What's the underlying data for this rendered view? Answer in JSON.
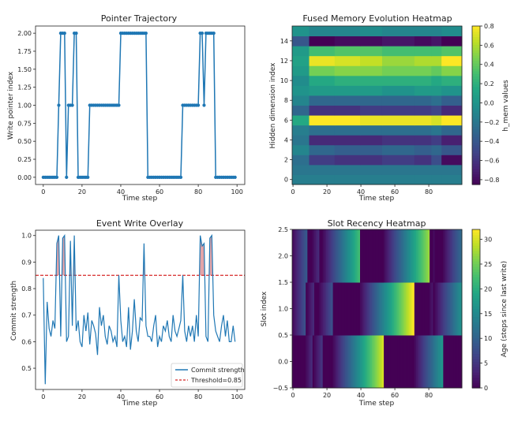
{
  "chart_data": [
    {
      "type": "line",
      "title": "Pointer Trajectory",
      "xlabel": "Time step",
      "ylabel": "Write pointer index",
      "xlim": [
        -4,
        104
      ],
      "ylim": [
        -0.1,
        2.1
      ],
      "xticks": [
        0,
        20,
        40,
        60,
        80,
        100
      ],
      "yticks": [
        0.0,
        0.25,
        0.5,
        0.75,
        1.0,
        1.25,
        1.5,
        1.75,
        2.0
      ],
      "ytick_labels": [
        "0.00",
        "0.25",
        "0.50",
        "0.75",
        "1.00",
        "1.25",
        "1.50",
        "1.75",
        "2.00"
      ],
      "color": "#1f77b4",
      "markers": true,
      "x": [
        0,
        1,
        2,
        3,
        4,
        5,
        6,
        7,
        8,
        9,
        10,
        11,
        12,
        13,
        14,
        15,
        16,
        17,
        18,
        19,
        20,
        21,
        22,
        23,
        24,
        25,
        26,
        27,
        28,
        29,
        30,
        31,
        32,
        33,
        34,
        35,
        36,
        37,
        38,
        39,
        40,
        41,
        42,
        43,
        44,
        45,
        46,
        47,
        48,
        49,
        50,
        51,
        52,
        53,
        54,
        55,
        56,
        57,
        58,
        59,
        60,
        61,
        62,
        63,
        64,
        65,
        66,
        67,
        68,
        69,
        70,
        71,
        72,
        73,
        74,
        75,
        76,
        77,
        78,
        79,
        80,
        81,
        82,
        83,
        84,
        85,
        86,
        87,
        88,
        89,
        90,
        91,
        92,
        93,
        94,
        95,
        96,
        97,
        98,
        99
      ],
      "values": [
        0,
        0,
        0,
        0,
        0,
        0,
        0,
        0,
        1,
        2,
        2,
        2,
        0,
        1,
        1,
        1,
        2,
        2,
        0,
        0,
        0,
        0,
        0,
        0,
        1,
        1,
        1,
        1,
        1,
        1,
        1,
        1,
        1,
        1,
        1,
        1,
        1,
        1,
        1,
        1,
        2,
        2,
        2,
        2,
        2,
        2,
        2,
        2,
        2,
        2,
        2,
        2,
        2,
        2,
        0,
        0,
        0,
        0,
        0,
        0,
        0,
        0,
        0,
        0,
        0,
        0,
        0,
        0,
        0,
        0,
        0,
        0,
        1,
        1,
        1,
        1,
        1,
        1,
        1,
        1,
        1,
        2,
        2,
        1,
        2,
        2,
        2,
        2,
        2,
        0,
        0,
        0,
        0,
        0,
        0,
        0,
        0,
        0,
        0,
        0
      ]
    },
    {
      "type": "heatmap",
      "title": "Fused Memory Evolution Heatmap",
      "xlabel": "Time step",
      "ylabel": "Hidden dimension index",
      "xticks": [
        0,
        20,
        40,
        60,
        80
      ],
      "yticks": [
        0,
        2,
        4,
        6,
        8,
        10,
        12,
        14
      ],
      "n_rows": 16,
      "n_cols": 100,
      "colormap": "viridis",
      "colorbar_label": "h_mem values",
      "vmin": -0.85,
      "vmax": 0.8,
      "colorbar_ticks": [
        -0.8,
        -0.6,
        -0.4,
        -0.2,
        0.0,
        0.2,
        0.4,
        0.6,
        0.8
      ],
      "colorbar_tick_labels": [
        "−0.8",
        "−0.6",
        "−0.4",
        "−0.2",
        "0.0",
        "0.2",
        "0.4",
        "0.6",
        "0.8"
      ],
      "segment_boundaries": [
        0,
        10,
        25,
        40,
        53,
        72,
        82,
        88,
        100
      ],
      "rows": [
        [
          -0.15,
          -0.15,
          -0.15,
          -0.15,
          -0.15,
          -0.15,
          -0.15,
          -0.15
        ],
        [
          -0.2,
          -0.2,
          -0.2,
          -0.2,
          -0.2,
          -0.2,
          -0.2,
          -0.2
        ],
        [
          -0.25,
          -0.55,
          -0.6,
          -0.6,
          -0.55,
          -0.6,
          -0.45,
          -0.8
        ],
        [
          -0.1,
          -0.3,
          -0.35,
          -0.35,
          -0.3,
          -0.35,
          -0.3,
          -0.4
        ],
        [
          -0.2,
          -0.65,
          -0.65,
          -0.65,
          -0.6,
          -0.6,
          -0.55,
          -0.7
        ],
        [
          -0.15,
          -0.25,
          -0.25,
          -0.25,
          -0.25,
          -0.25,
          -0.2,
          -0.3
        ],
        [
          0.15,
          0.8,
          0.8,
          0.75,
          0.75,
          0.75,
          0.7,
          0.8
        ],
        [
          -0.3,
          -0.6,
          -0.6,
          -0.55,
          -0.55,
          -0.55,
          -0.5,
          -0.65
        ],
        [
          -0.1,
          -0.3,
          -0.3,
          -0.3,
          -0.3,
          -0.3,
          -0.25,
          -0.35
        ],
        [
          0.0,
          0.05,
          0.05,
          0.05,
          0.0,
          0.05,
          0.05,
          0.0
        ],
        [
          -0.05,
          0.15,
          0.2,
          0.2,
          0.2,
          0.2,
          0.15,
          0.2
        ],
        [
          0.05,
          0.45,
          0.5,
          0.5,
          0.45,
          0.45,
          0.4,
          0.5
        ],
        [
          0.1,
          0.75,
          0.7,
          0.65,
          0.55,
          0.6,
          0.6,
          0.8
        ],
        [
          0.05,
          0.3,
          0.35,
          0.35,
          0.3,
          0.3,
          0.3,
          0.35
        ],
        [
          -0.4,
          -0.85,
          -0.8,
          -0.8,
          -0.75,
          -0.8,
          -0.75,
          -0.85
        ],
        [
          0.0,
          -0.1,
          -0.1,
          -0.05,
          -0.1,
          -0.1,
          -0.1,
          -0.05
        ]
      ]
    },
    {
      "type": "line",
      "title": "Event Write Overlay",
      "xlabel": "Time step",
      "ylabel": "Commit strength",
      "xlim": [
        -4,
        104
      ],
      "ylim": [
        0.42,
        1.02
      ],
      "xticks": [
        0,
        20,
        40,
        60,
        80,
        100
      ],
      "yticks": [
        0.5,
        0.6,
        0.7,
        0.8,
        0.9,
        1.0
      ],
      "ytick_labels": [
        "0.5",
        "0.6",
        "0.7",
        "0.8",
        "0.9",
        "1.0"
      ],
      "threshold": 0.85,
      "threshold_color": "#d62728",
      "fill_color": "#d9848a",
      "legend_position": "lower right",
      "legend": [
        "Commit strength",
        "Threshold=0.85"
      ],
      "series": [
        {
          "name": "Commit strength",
          "color": "#1f77b4",
          "x": [
            0,
            1,
            2,
            3,
            4,
            5,
            6,
            7,
            8,
            9,
            10,
            11,
            12,
            13,
            14,
            15,
            16,
            17,
            18,
            19,
            20,
            21,
            22,
            23,
            24,
            25,
            26,
            27,
            28,
            29,
            30,
            31,
            32,
            33,
            34,
            35,
            36,
            37,
            38,
            39,
            40,
            41,
            42,
            43,
            44,
            45,
            46,
            47,
            48,
            49,
            50,
            51,
            52,
            53,
            54,
            55,
            56,
            57,
            58,
            59,
            60,
            61,
            62,
            63,
            64,
            65,
            66,
            67,
            68,
            69,
            70,
            71,
            72,
            73,
            74,
            75,
            76,
            77,
            78,
            79,
            80,
            81,
            82,
            83,
            84,
            85,
            86,
            87,
            88,
            89,
            90,
            91,
            92,
            93,
            94,
            95,
            96,
            97,
            98,
            99
          ],
          "values": [
            0.84,
            0.44,
            0.75,
            0.65,
            0.62,
            0.68,
            0.65,
            0.97,
            1.0,
            0.62,
            0.99,
            1.0,
            0.6,
            0.62,
            0.98,
            0.66,
            1.0,
            0.64,
            0.68,
            0.6,
            0.58,
            0.7,
            0.64,
            0.71,
            0.59,
            0.68,
            0.66,
            0.63,
            0.55,
            0.73,
            0.66,
            0.7,
            0.62,
            0.59,
            0.66,
            0.64,
            0.6,
            0.62,
            0.58,
            0.85,
            0.68,
            0.6,
            0.62,
            0.58,
            0.73,
            0.57,
            0.64,
            0.76,
            0.64,
            0.6,
            0.69,
            0.68,
            0.97,
            0.66,
            0.62,
            0.62,
            0.6,
            0.66,
            0.7,
            0.58,
            0.62,
            0.6,
            0.66,
            0.64,
            0.68,
            0.62,
            0.6,
            0.7,
            0.64,
            0.62,
            0.65,
            0.68,
            0.85,
            0.64,
            0.6,
            0.66,
            0.62,
            0.66,
            0.6,
            0.7,
            0.62,
            1.0,
            0.96,
            0.97,
            0.62,
            0.6,
            0.99,
            1.0,
            0.7,
            0.64,
            0.62,
            0.6,
            0.66,
            0.7,
            0.62,
            0.68,
            0.6,
            0.6,
            0.66,
            0.6
          ]
        }
      ]
    },
    {
      "type": "heatmap",
      "title": "Slot Recency Heatmap",
      "xlabel": "Time step",
      "ylabel": "Slot index",
      "xticks": [
        0,
        20,
        40,
        60,
        80
      ],
      "yticks": [
        -0.5,
        0.0,
        0.5,
        1.0,
        1.5,
        2.0,
        2.5
      ],
      "ytick_labels": [
        "−0.5",
        "0.0",
        "0.5",
        "1.0",
        "1.5",
        "2.0",
        "2.5"
      ],
      "colormap": "viridis",
      "colorbar_label": "Age (steps since last write)",
      "vmin": 0,
      "vmax": 32,
      "colorbar_ticks": [
        0,
        5,
        10,
        15,
        20,
        25,
        30
      ],
      "rows_write_steps": [
        [
          0,
          1,
          2,
          3,
          4,
          5,
          6,
          7,
          12,
          18,
          19,
          20,
          21,
          22,
          23,
          54,
          55,
          56,
          57,
          58,
          59,
          60,
          61,
          62,
          63,
          64,
          65,
          66,
          67,
          68,
          69,
          70,
          71,
          89,
          90,
          91,
          92,
          93,
          94,
          95,
          96,
          97,
          98,
          99
        ],
        [
          8,
          13,
          14,
          15,
          24,
          25,
          26,
          27,
          28,
          29,
          30,
          31,
          32,
          33,
          34,
          35,
          36,
          37,
          38,
          39,
          72,
          73,
          74,
          75,
          76,
          77,
          78,
          79,
          80,
          83
        ],
        [
          9,
          10,
          11,
          16,
          17,
          40,
          41,
          42,
          43,
          44,
          45,
          46,
          47,
          48,
          49,
          50,
          51,
          52,
          53,
          81,
          82,
          84,
          85,
          86,
          87,
          88
        ]
      ]
    }
  ]
}
